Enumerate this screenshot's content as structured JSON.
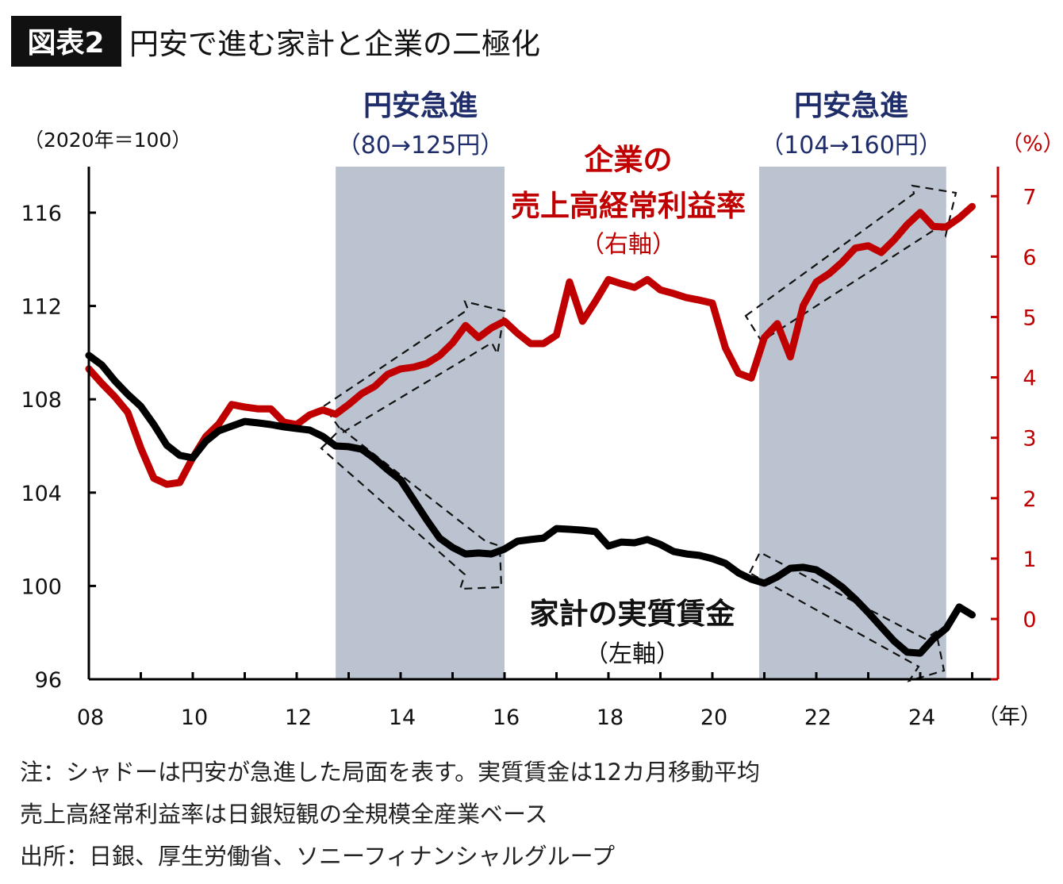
{
  "figure": {
    "badge": "図表2",
    "title": "円安で進む家計と企業の二極化",
    "notes": [
      "注：シャドーは円安が急進した局面を表す。実質賃金は12カ月移動平均",
      "売上高経常利益率は日銀短観の全規模全産業ベース",
      "出所：日銀、厚生労働省、ソニーフィナンシャルグループ"
    ]
  },
  "chart_data": {
    "type": "line",
    "title": "円安で進む家計と企業の二極化",
    "left_axis": {
      "unit_label": "（2020年＝100）",
      "range": [
        96,
        118
      ],
      "ticks": [
        96,
        100,
        104,
        108,
        112,
        116
      ]
    },
    "right_axis": {
      "unit_label": "（%）",
      "range": [
        -1,
        8.5
      ],
      "ticks": [
        0,
        1,
        2,
        3,
        4,
        5,
        6,
        7
      ],
      "color": "#c00000"
    },
    "x_axis": {
      "unit_label": "（年）",
      "range": [
        2008,
        2025.7
      ],
      "ticks": [
        2008,
        2010,
        2012,
        2014,
        2016,
        2018,
        2020,
        2022,
        2024
      ],
      "tick_labels": [
        "08",
        "10",
        "12",
        "14",
        "16",
        "18",
        "20",
        "22",
        "24"
      ]
    },
    "grid": false,
    "shaded_periods": [
      {
        "from": 2012.75,
        "to": 2016.0,
        "label": "円安急進",
        "sublabel": "（80→125円）"
      },
      {
        "from": 2020.9,
        "to": 2024.5,
        "label": "円安急進",
        "sublabel": "（104→160円）"
      }
    ],
    "shade_color": "#bcc3d0",
    "label_color": "#1f2d6b",
    "x": [
      2008,
      2008.25,
      2008.5,
      2008.75,
      2009,
      2009.25,
      2009.5,
      2009.75,
      2010,
      2010.25,
      2010.5,
      2010.75,
      2011,
      2011.25,
      2011.5,
      2011.75,
      2012,
      2012.25,
      2012.5,
      2012.75,
      2013,
      2013.25,
      2013.5,
      2013.75,
      2014,
      2014.25,
      2014.5,
      2014.75,
      2015,
      2015.25,
      2015.5,
      2015.75,
      2016,
      2016.25,
      2016.5,
      2016.75,
      2017,
      2017.25,
      2017.5,
      2017.75,
      2018,
      2018.25,
      2018.5,
      2018.75,
      2019,
      2019.25,
      2019.5,
      2019.75,
      2020,
      2020.25,
      2020.5,
      2020.75,
      2021,
      2021.25,
      2021.5,
      2021.75,
      2022,
      2022.25,
      2022.5,
      2022.75,
      2023,
      2023.25,
      2023.5,
      2023.75,
      2024,
      2024.25,
      2024.5,
      2024.75,
      2025
    ],
    "series": [
      {
        "name": "売上高経常利益率",
        "name_line1": "企業の",
        "name_line2": "売上高経常利益率",
        "axis_label": "（右軸）",
        "axis": "right",
        "color": "#c00000",
        "values": [
          4.14,
          3.9,
          3.68,
          3.42,
          2.83,
          2.33,
          2.23,
          2.26,
          2.67,
          3.02,
          3.23,
          3.55,
          3.51,
          3.48,
          3.48,
          3.26,
          3.22,
          3.38,
          3.46,
          3.39,
          3.55,
          3.73,
          3.85,
          4.05,
          4.14,
          4.17,
          4.23,
          4.36,
          4.57,
          4.86,
          4.66,
          4.82,
          4.93,
          4.73,
          4.56,
          4.56,
          4.7,
          5.58,
          4.93,
          5.26,
          5.62,
          5.55,
          5.49,
          5.62,
          5.45,
          5.39,
          5.32,
          5.28,
          5.23,
          4.49,
          4.07,
          3.99,
          4.66,
          4.89,
          4.34,
          5.19,
          5.58,
          5.72,
          5.91,
          6.14,
          6.18,
          6.07,
          6.28,
          6.53,
          6.73,
          6.5,
          6.49,
          6.64,
          6.83
        ]
      },
      {
        "name": "家計の実質賃金",
        "axis_label": "（左軸）",
        "axis": "left",
        "color": "#000000",
        "values": [
          109.88,
          109.47,
          108.79,
          108.21,
          107.7,
          106.92,
          106.03,
          105.6,
          105.49,
          106.2,
          106.65,
          106.85,
          107.05,
          106.99,
          106.92,
          106.82,
          106.75,
          106.68,
          106.41,
          106.0,
          105.97,
          105.86,
          105.46,
          104.98,
          104.54,
          103.69,
          102.84,
          102.05,
          101.65,
          101.37,
          101.41,
          101.37,
          101.58,
          101.92,
          101.99,
          102.05,
          102.46,
          102.43,
          102.39,
          102.33,
          101.71,
          101.88,
          101.85,
          101.99,
          101.78,
          101.48,
          101.37,
          101.31,
          101.17,
          100.97,
          100.56,
          100.29,
          100.12,
          100.39,
          100.76,
          100.8,
          100.69,
          100.35,
          99.95,
          99.44,
          98.86,
          98.24,
          97.63,
          97.16,
          97.12,
          97.73,
          98.18,
          99.1,
          98.76
        ]
      }
    ]
  }
}
